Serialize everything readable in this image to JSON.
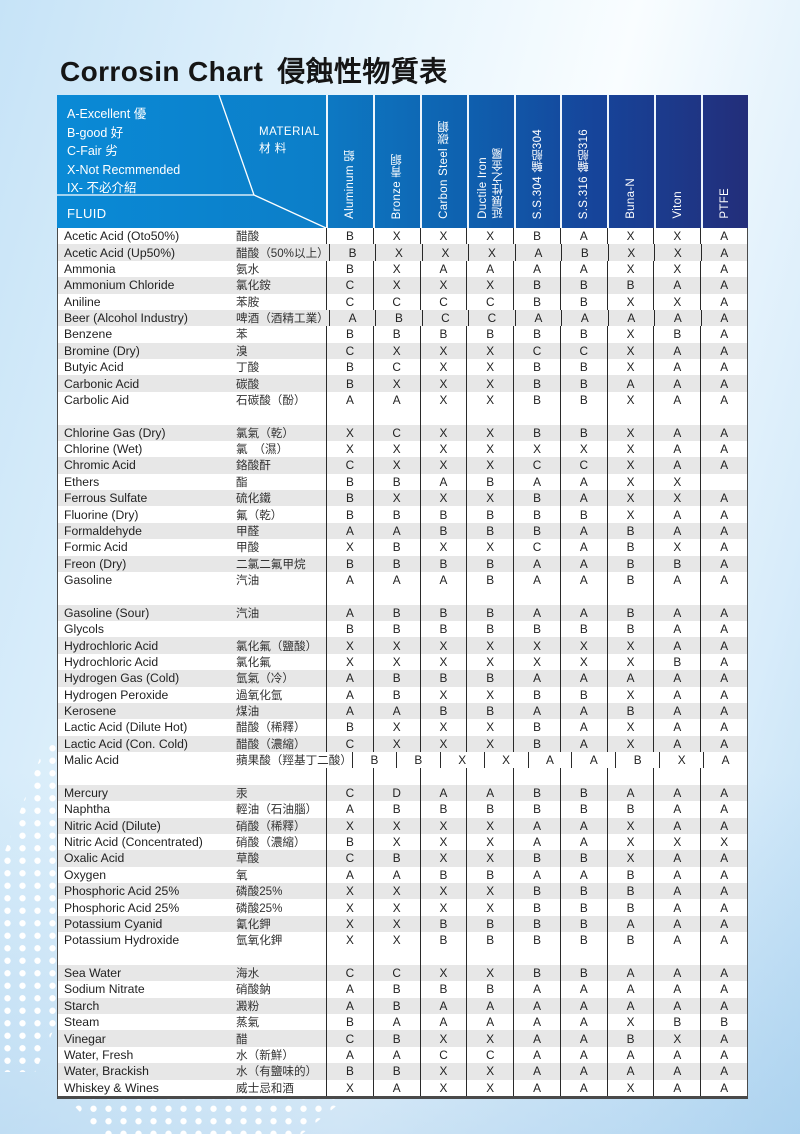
{
  "page": {
    "title_en": "Corrosin Chart",
    "title_zh": "侵蝕性物質表"
  },
  "legend": {
    "lines": [
      "A-Excellent 優",
      "B-good 好",
      "C-Fair 劣",
      "X-Not Recmmended",
      "IX- 不必介紹"
    ],
    "material_label": "MATERIAL\n材  料",
    "fluid_label": "FLUID"
  },
  "colors": {
    "header_left_blue": "#0a8ad6",
    "header_right_navy": "#232e7a",
    "row_stripe": "#e7e7e7",
    "page_background": "#cde7f8",
    "header_text": "#ffffff",
    "body_text": "#222222"
  },
  "table": {
    "columns": [
      "Aluminum 鋁",
      "Bronze 青銅",
      "Carbon Steel 碳鋼",
      "Ductile Iron\n延展性之金屬",
      "S.S.304 輪船304",
      "S.S.316 輪船316",
      "Buna-N",
      "Viton",
      "PTFE"
    ],
    "groups": [
      {
        "start_shaded": false,
        "rows": [
          {
            "en": "Acetic Acid (Oto50%)",
            "zh": "醋酸",
            "vals": [
              "B",
              "X",
              "X",
              "X",
              "B",
              "A",
              "X",
              "X",
              "A"
            ]
          },
          {
            "en": "Acetic Acid (Up50%)",
            "zh": "醋酸（50%以上）",
            "vals": [
              "B",
              "X",
              "X",
              "X",
              "A",
              "B",
              "X",
              "X",
              "A"
            ]
          },
          {
            "en": "Ammonia",
            "zh": "氨水",
            "vals": [
              "B",
              "X",
              "A",
              "A",
              "A",
              "A",
              "X",
              "X",
              "A"
            ]
          },
          {
            "en": "Ammonium Chloride",
            "zh": "氯化銨",
            "vals": [
              "C",
              "X",
              "X",
              "X",
              "B",
              "B",
              "B",
              "A",
              "A"
            ]
          },
          {
            "en": "Aniline",
            "zh": "苯胺",
            "vals": [
              "C",
              "C",
              "C",
              "C",
              "B",
              "B",
              "X",
              "X",
              "A"
            ]
          },
          {
            "en": "Beer (Alcohol Industry)",
            "zh": "啤酒（酒精工業）",
            "vals": [
              "A",
              "B",
              "C",
              "C",
              "A",
              "A",
              "A",
              "A",
              "A"
            ]
          },
          {
            "en": "Benzene",
            "zh": "苯",
            "vals": [
              "B",
              "B",
              "B",
              "B",
              "B",
              "B",
              "X",
              "B",
              "A"
            ]
          },
          {
            "en": "Bromine (Dry)",
            "zh": "溴",
            "vals": [
              "C",
              "X",
              "X",
              "X",
              "C",
              "C",
              "X",
              "A",
              "A"
            ]
          },
          {
            "en": "Butyic Acid",
            "zh": "丁酸",
            "vals": [
              "B",
              "C",
              "X",
              "X",
              "B",
              "B",
              "X",
              "A",
              "A"
            ]
          },
          {
            "en": "Carbonic Acid",
            "zh": "碳酸",
            "vals": [
              "B",
              "X",
              "X",
              "X",
              "B",
              "B",
              "A",
              "A",
              "A"
            ]
          },
          {
            "en": "Carbolic Aid",
            "zh": "石碳酸（酚）",
            "vals": [
              "A",
              "A",
              "X",
              "X",
              "B",
              "B",
              "X",
              "A",
              "A"
            ]
          }
        ]
      },
      {
        "start_shaded": true,
        "rows": [
          {
            "en": "Chlorine Gas (Dry)",
            "zh": "氯氣（乾）",
            "vals": [
              "X",
              "C",
              "X",
              "X",
              "B",
              "B",
              "X",
              "A",
              "A"
            ]
          },
          {
            "en": "Chlorine (Wet)",
            "zh": "氯　（濕）",
            "vals": [
              "X",
              "X",
              "X",
              "X",
              "X",
              "X",
              "X",
              "A",
              "A"
            ]
          },
          {
            "en": "Chromic Acid",
            "zh": "鉻酸酐",
            "vals": [
              "C",
              "X",
              "X",
              "X",
              "C",
              "C",
              "X",
              "A",
              "A"
            ]
          },
          {
            "en": "Ethers",
            "zh": "酯",
            "vals": [
              "B",
              "B",
              "A",
              "B",
              "A",
              "A",
              "X",
              "X",
              ""
            ]
          },
          {
            "en": "Ferrous Sulfate",
            "zh": "硫化鐵",
            "vals": [
              "B",
              "X",
              "X",
              "X",
              "B",
              "A",
              "X",
              "X",
              "A"
            ]
          },
          {
            "en": "Fluorine (Dry)",
            "zh": "氟（乾）",
            "vals": [
              "B",
              "B",
              "B",
              "B",
              "B",
              "B",
              "X",
              "A",
              "A"
            ]
          },
          {
            "en": "Formaldehyde",
            "zh": "甲醛",
            "vals": [
              "A",
              "A",
              "B",
              "B",
              "B",
              "A",
              "B",
              "A",
              "A"
            ]
          },
          {
            "en": "Formic Acid",
            "zh": "甲酸",
            "vals": [
              "X",
              "B",
              "X",
              "X",
              "C",
              "A",
              "B",
              "X",
              "A"
            ]
          },
          {
            "en": "Freon (Dry)",
            "zh": "二氯二氟甲烷",
            "vals": [
              "B",
              "B",
              "B",
              "B",
              "A",
              "A",
              "B",
              "B",
              "A"
            ]
          },
          {
            "en": "Gasoline",
            "zh": "汽油",
            "vals": [
              "A",
              "A",
              "A",
              "B",
              "A",
              "A",
              "B",
              "A",
              "A"
            ]
          }
        ]
      },
      {
        "start_shaded": true,
        "rows": [
          {
            "en": "Gasoline (Sour)",
            "zh": "汽油",
            "vals": [
              "A",
              "B",
              "B",
              "B",
              "A",
              "A",
              "B",
              "A",
              "A"
            ]
          },
          {
            "en": "Glycols",
            "zh": "",
            "vals": [
              "B",
              "B",
              "B",
              "B",
              "B",
              "B",
              "B",
              "A",
              "A"
            ]
          },
          {
            "en": "Hydrochloric Acid",
            "zh": "氯化氟（鹽酸）",
            "vals": [
              "X",
              "X",
              "X",
              "X",
              "X",
              "X",
              "X",
              "A",
              "A"
            ]
          },
          {
            "en": "Hydrochloric Acid",
            "zh": "氯化氟",
            "vals": [
              "X",
              "X",
              "X",
              "X",
              "X",
              "X",
              "X",
              "B",
              "A"
            ]
          },
          {
            "en": "Hydrogen Gas (Cold)",
            "zh": "氫氣（冷）",
            "vals": [
              "A",
              "B",
              "B",
              "B",
              "A",
              "A",
              "A",
              "A",
              "A"
            ]
          },
          {
            "en": "Hydrogen Peroxide",
            "zh": "過氧化氫",
            "vals": [
              "A",
              "B",
              "X",
              "X",
              "B",
              "B",
              "X",
              "A",
              "A"
            ]
          },
          {
            "en": "Kerosene",
            "zh": "煤油",
            "vals": [
              "A",
              "A",
              "B",
              "B",
              "A",
              "A",
              "B",
              "A",
              "A"
            ]
          },
          {
            "en": "Lactic Acid (Dilute Hot)",
            "zh": "醋酸（稀釋）",
            "vals": [
              "B",
              "X",
              "X",
              "X",
              "B",
              "A",
              "X",
              "A",
              "A"
            ]
          },
          {
            "en": "Lactic Acid (Con. Cold)",
            "zh": "醋酸（濃縮）",
            "vals": [
              "C",
              "X",
              "X",
              "X",
              "B",
              "A",
              "X",
              "A",
              "A"
            ]
          },
          {
            "en": "Malic Acid",
            "zh": "蘋果酸（羥基丁二酸）",
            "vals": [
              "B",
              "B",
              "X",
              "X",
              "A",
              "A",
              "B",
              "X",
              "A"
            ]
          }
        ]
      },
      {
        "start_shaded": true,
        "rows": [
          {
            "en": "Mercury",
            "zh": "汞",
            "vals": [
              "C",
              "D",
              "A",
              "A",
              "B",
              "B",
              "A",
              "A",
              "A"
            ]
          },
          {
            "en": "Naphtha",
            "zh": "輕油（石油腦）",
            "vals": [
              "A",
              "B",
              "B",
              "B",
              "B",
              "B",
              "B",
              "A",
              "A"
            ]
          },
          {
            "en": "Nitric Acid (Dilute)",
            "zh": "硝酸（稀釋）",
            "vals": [
              "X",
              "X",
              "X",
              "X",
              "A",
              "A",
              "X",
              "A",
              "A"
            ]
          },
          {
            "en": "Nitric Acid (Concentrated)",
            "zh": "硝酸（濃縮）",
            "vals": [
              "B",
              "X",
              "X",
              "X",
              "A",
              "A",
              "X",
              "X",
              "X"
            ]
          },
          {
            "en": "Oxalic Acid",
            "zh": "草酸",
            "vals": [
              "C",
              "B",
              "X",
              "X",
              "B",
              "B",
              "X",
              "A",
              "A"
            ]
          },
          {
            "en": "Oxygen",
            "zh": "氧",
            "vals": [
              "A",
              "A",
              "B",
              "B",
              "A",
              "A",
              "B",
              "A",
              "A"
            ]
          },
          {
            "en": "Phosphoric Acid 25%",
            "zh": "磷酸25%",
            "vals": [
              "X",
              "X",
              "X",
              "X",
              "B",
              "B",
              "B",
              "A",
              "A"
            ]
          },
          {
            "en": "Phosphoric Acid 25%",
            "zh": "磷酸25%",
            "vals": [
              "X",
              "X",
              "X",
              "X",
              "B",
              "B",
              "B",
              "A",
              "A"
            ]
          },
          {
            "en": "Potassium Cyanid",
            "zh": "氰化鉀",
            "vals": [
              "X",
              "X",
              "B",
              "B",
              "B",
              "B",
              "A",
              "A",
              "A"
            ]
          },
          {
            "en": "Potassium Hydroxide",
            "zh": "氫氧化鉀",
            "vals": [
              "X",
              "X",
              "B",
              "B",
              "B",
              "B",
              "B",
              "A",
              "A"
            ]
          }
        ]
      },
      {
        "start_shaded": true,
        "rows": [
          {
            "en": "Sea Water",
            "zh": "海水",
            "vals": [
              "C",
              "C",
              "X",
              "X",
              "B",
              "B",
              "A",
              "A",
              "A"
            ]
          },
          {
            "en": "Sodium Nitrate",
            "zh": "硝酸鈉",
            "vals": [
              "A",
              "B",
              "B",
              "B",
              "A",
              "A",
              "A",
              "A",
              "A"
            ]
          },
          {
            "en": "Starch",
            "zh": "澱粉",
            "vals": [
              "A",
              "B",
              "A",
              "A",
              "A",
              "A",
              "A",
              "A",
              "A"
            ]
          },
          {
            "en": "Steam",
            "zh": "蒸氣",
            "vals": [
              "B",
              "A",
              "A",
              "A",
              "A",
              "A",
              "X",
              "B",
              "B"
            ]
          },
          {
            "en": "Vinegar",
            "zh": "醋",
            "vals": [
              "C",
              "B",
              "X",
              "X",
              "A",
              "A",
              "B",
              "X",
              "A"
            ]
          },
          {
            "en": "Water, Fresh",
            "zh": "水（新鮮）",
            "vals": [
              "A",
              "A",
              "C",
              "C",
              "A",
              "A",
              "A",
              "A",
              "A"
            ]
          },
          {
            "en": "Water, Brackish",
            "zh": "水（有鹽味的）",
            "vals": [
              "B",
              "B",
              "X",
              "X",
              "A",
              "A",
              "A",
              "A",
              "A"
            ]
          },
          {
            "en": "Whiskey & Wines",
            "zh": "威士忌和酒",
            "vals": [
              "X",
              "A",
              "X",
              "X",
              "A",
              "A",
              "X",
              "A",
              "A"
            ]
          }
        ]
      }
    ]
  }
}
